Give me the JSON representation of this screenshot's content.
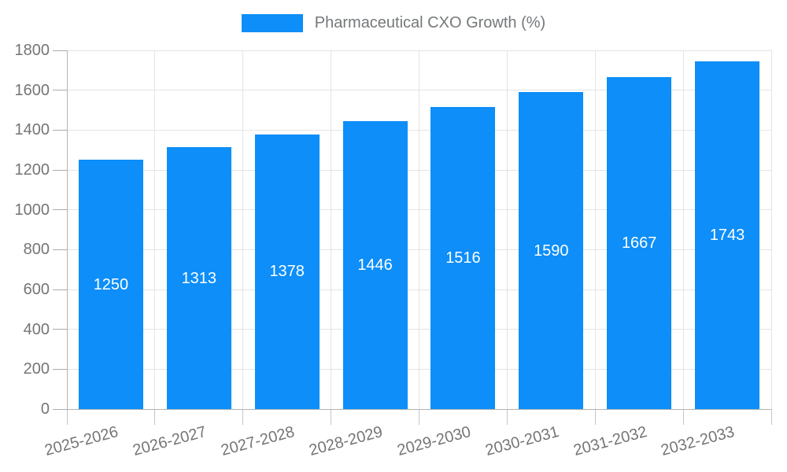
{
  "chart_data": {
    "type": "bar",
    "title": "Pharmaceutical CXO Growth (%)",
    "categories": [
      "2025-2026",
      "2026-2027",
      "2027-2028",
      "2028-2029",
      "2029-2030",
      "2030-2031",
      "2031-2032",
      "2032-2033"
    ],
    "values": [
      1250,
      1313,
      1378,
      1446,
      1516,
      1590,
      1667,
      1743
    ],
    "xlabel": "",
    "ylabel": "",
    "ylim": [
      0,
      1800
    ],
    "ytick_step": 200,
    "ytick_labels": [
      "0",
      "200",
      "400",
      "600",
      "800",
      "1000",
      "1200",
      "1400",
      "1600",
      "1800"
    ],
    "grid": true,
    "legend_position": "top-center",
    "x_label_rotation_deg": -15,
    "bar_color": "#0d8ef8",
    "value_label_color": "#ffffff",
    "axis_text_color": "#757575",
    "title_text_color": "#75787b"
  }
}
